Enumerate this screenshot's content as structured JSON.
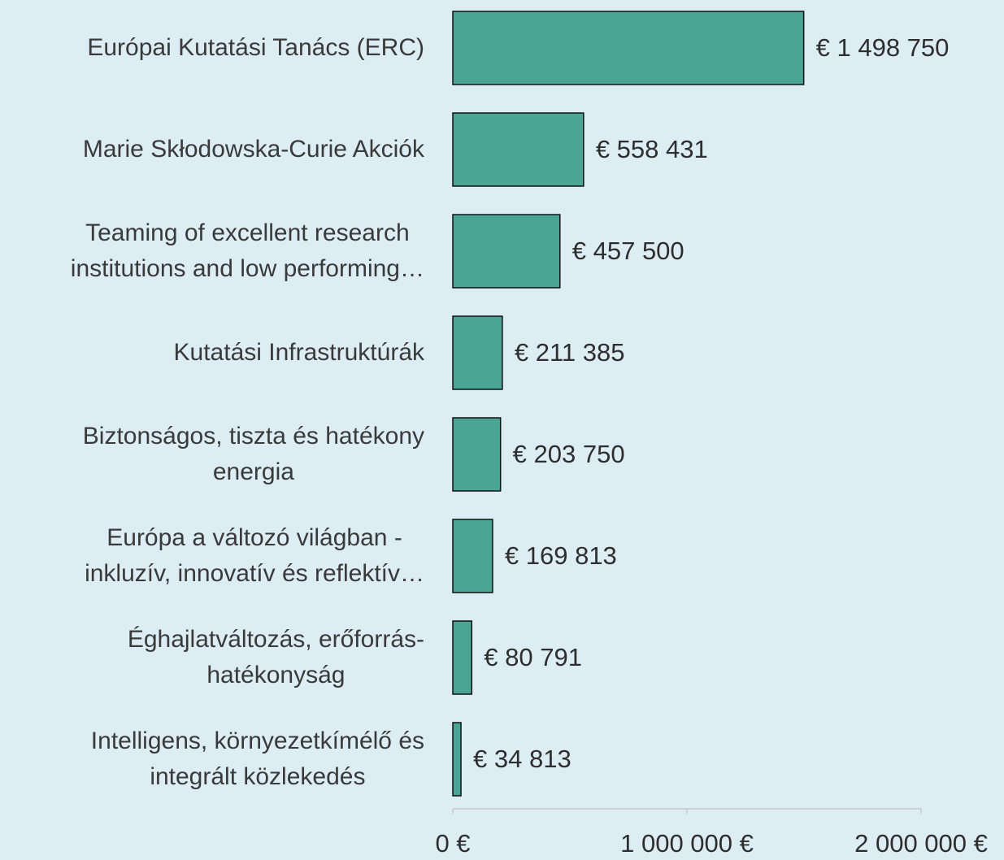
{
  "chart_data": {
    "type": "barh",
    "categories": [
      "Európai Kutatási Tanács (ERC)",
      "Marie Skłodowska-Curie Akciók",
      "Teaming of excellent research\ninstitutions and low performing…",
      "Kutatási Infrastruktúrák",
      "Biztonságos, tiszta és hatékony\nenergia",
      "Európa a változó világban -\ninkluzív, innovatív és reflektív…",
      "Éghajlatváltozás, erőforrás-\nhatékonyság",
      "Intelligens, környezetkímélő és\nintegrált közlekedés"
    ],
    "values": [
      1498750,
      558431,
      457500,
      211385,
      203750,
      169813,
      80791,
      34813
    ],
    "value_labels": [
      "€ 1 498 750",
      "€ 558 431",
      "€ 457 500",
      "€ 211 385",
      "€ 203 750",
      "€ 169 813",
      "€ 80 791",
      "€ 34 813"
    ],
    "color": "#4aa595",
    "xlim": [
      0,
      2000000
    ],
    "xticks": [
      {
        "value": 0,
        "label": "0 €"
      },
      {
        "value": 1000000,
        "label": "1 000 000 €"
      },
      {
        "value": 2000000,
        "label": "2 000 000 €"
      }
    ]
  }
}
